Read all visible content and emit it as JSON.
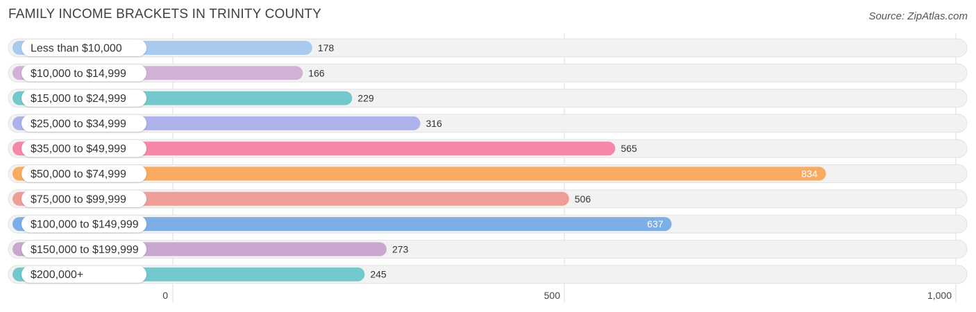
{
  "title": "FAMILY INCOME BRACKETS IN TRINITY COUNTY",
  "source": "Source: ZipAtlas.com",
  "chart_data": {
    "type": "bar",
    "orientation": "horizontal",
    "title": "FAMILY INCOME BRACKETS IN TRINITY COUNTY",
    "categories": [
      "Less than $10,000",
      "$10,000 to $14,999",
      "$15,000 to $24,999",
      "$25,000 to $34,999",
      "$35,000 to $49,999",
      "$50,000 to $74,999",
      "$75,000 to $99,999",
      "$100,000 to $149,999",
      "$150,000 to $199,999",
      "$200,000+"
    ],
    "values": [
      178,
      166,
      229,
      316,
      565,
      834,
      506,
      637,
      273,
      245
    ],
    "value_labels": [
      "178",
      "166",
      "229",
      "316",
      "565",
      "834",
      "506",
      "637",
      "273",
      "245"
    ],
    "colors": [
      "#a9c9ef",
      "#d2b1d6",
      "#72c8cb",
      "#aeb2ea",
      "#f787a8",
      "#f9ab60",
      "#ef9e97",
      "#7eaee6",
      "#c9a7cf",
      "#72c8cb"
    ],
    "xlim": [
      -200,
      1000
    ],
    "xticks": [
      0,
      500,
      1000
    ],
    "xtick_labels": [
      "0",
      "500",
      "1,000"
    ],
    "grid": true,
    "legend": "none"
  }
}
